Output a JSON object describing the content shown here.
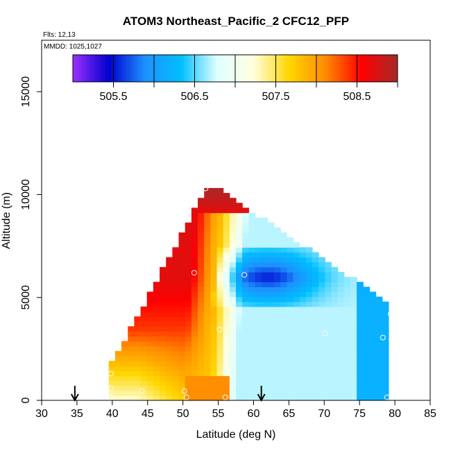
{
  "chart_data": {
    "type": "heatmap",
    "title": "ATOM3 Northeast_Pacific_2 CFC12_PFP",
    "subtitle_flights": "Flts: 12,13",
    "subtitle_dates": "MMDD: 1025,1027",
    "xlabel": "Latitude (deg N)",
    "ylabel": "Altitude (m)",
    "xlim": [
      30,
      85
    ],
    "ylim": [
      0,
      17500
    ],
    "xticks": [
      30,
      35,
      40,
      45,
      50,
      55,
      60,
      65,
      70,
      75,
      80,
      85
    ],
    "xtick_labels": [
      "30",
      "35",
      "40",
      "45",
      "50",
      "55",
      "60",
      "65",
      "70",
      "75",
      "80",
      "85"
    ],
    "yticks": [
      0,
      5000,
      10000,
      15000
    ],
    "ytick_labels": [
      "0",
      "5000",
      "10000",
      "15000"
    ],
    "colorbar": {
      "range": [
        505.0,
        509.0
      ],
      "ticks": [
        505.5,
        506.5,
        507.5,
        508.5
      ],
      "tick_labels": [
        "505.5",
        "506.5",
        "507.5",
        "508.5"
      ],
      "dividers": [
        505.5,
        506.0,
        506.5,
        507.0,
        507.5,
        508.0,
        508.5,
        509.0
      ],
      "colors": [
        "#9b30ff",
        "#0000cd",
        "#1e90ff",
        "#00bfff",
        "#e0ffff",
        "#ffffe0",
        "#ffd700",
        "#ff8c00",
        "#ff0000",
        "#a52a2a"
      ]
    },
    "arrows_lat": [
      34.7,
      61.1
    ],
    "sample_points": [
      {
        "lat": 39.8,
        "alt": 1300
      },
      {
        "lat": 39.8,
        "alt": 600
      },
      {
        "lat": 39.8,
        "alt": 150
      },
      {
        "lat": 44.2,
        "alt": 450
      },
      {
        "lat": 50.2,
        "alt": 450
      },
      {
        "lat": 50.5,
        "alt": 150
      },
      {
        "lat": 51.6,
        "alt": 6200
      },
      {
        "lat": 53.2,
        "alt": 10300
      },
      {
        "lat": 55.2,
        "alt": 3450
      },
      {
        "lat": 56.0,
        "alt": 150
      },
      {
        "lat": 58.7,
        "alt": 6100
      },
      {
        "lat": 70.1,
        "alt": 3250
      },
      {
        "lat": 78.3,
        "alt": 3050
      },
      {
        "lat": 78.9,
        "alt": 150
      },
      {
        "lat": 79.4,
        "alt": 4200
      }
    ]
  },
  "colors": {
    "frame": "#000000",
    "point_edge": "#ffffff"
  }
}
